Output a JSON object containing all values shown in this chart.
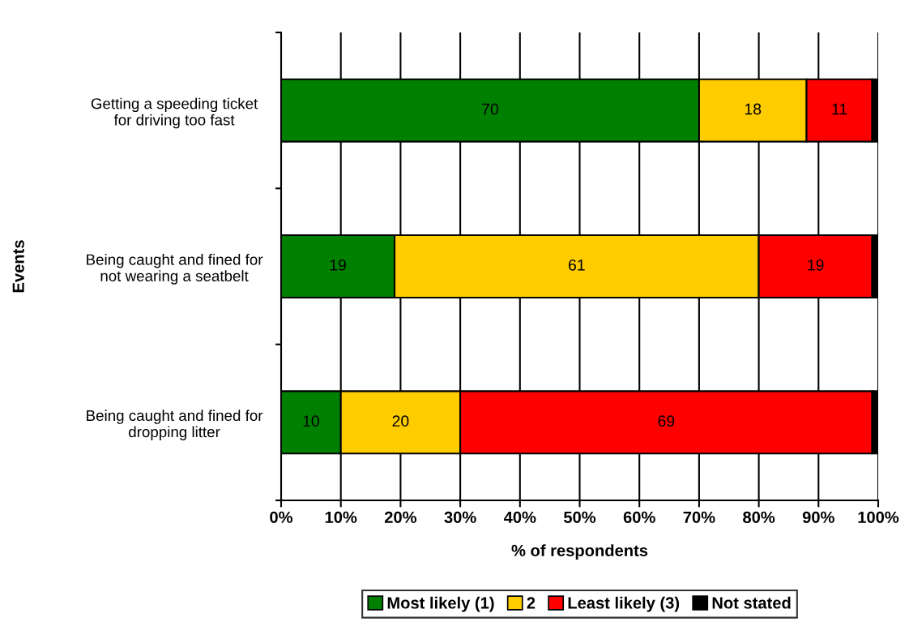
{
  "chart_data": {
    "type": "bar",
    "orientation": "horizontal",
    "stacked": true,
    "xlabel": "% of respondents",
    "ylabel": "Events",
    "categories": [
      "Getting a speeding ticket\nfor driving too fast",
      "Being caught and fined for\nnot wearing a seatbelt",
      "Being caught and fined for\ndropping litter"
    ],
    "series": [
      {
        "name": "Most likely (1)",
        "color": "#008000",
        "values": [
          70,
          19,
          10
        ],
        "value_labels": [
          "70",
          "19",
          "10"
        ]
      },
      {
        "name": "2",
        "color": "#ffcc00",
        "values": [
          18,
          61,
          20
        ],
        "value_labels": [
          "18",
          "61",
          "20"
        ]
      },
      {
        "name": "Least likely (3)",
        "color": "#ff0000",
        "values": [
          11,
          19,
          69
        ],
        "value_labels": [
          "11",
          "19",
          "69"
        ]
      },
      {
        "name": "Not stated",
        "color": "#000000",
        "values": [
          1,
          1,
          1
        ]
      }
    ],
    "xlim": [
      0,
      100
    ],
    "xticks": [
      {
        "value": 0,
        "label": "0%"
      },
      {
        "value": 10,
        "label": "10%"
      },
      {
        "value": 20,
        "label": "20%"
      },
      {
        "value": 30,
        "label": "30%"
      },
      {
        "value": 40,
        "label": "40%"
      },
      {
        "value": 50,
        "label": "50%"
      },
      {
        "value": 60,
        "label": "60%"
      },
      {
        "value": 70,
        "label": "70%"
      },
      {
        "value": 80,
        "label": "80%"
      },
      {
        "value": 90,
        "label": "90%"
      },
      {
        "value": 100,
        "label": "100%"
      }
    ],
    "grid": "x",
    "legend": "bottom"
  }
}
